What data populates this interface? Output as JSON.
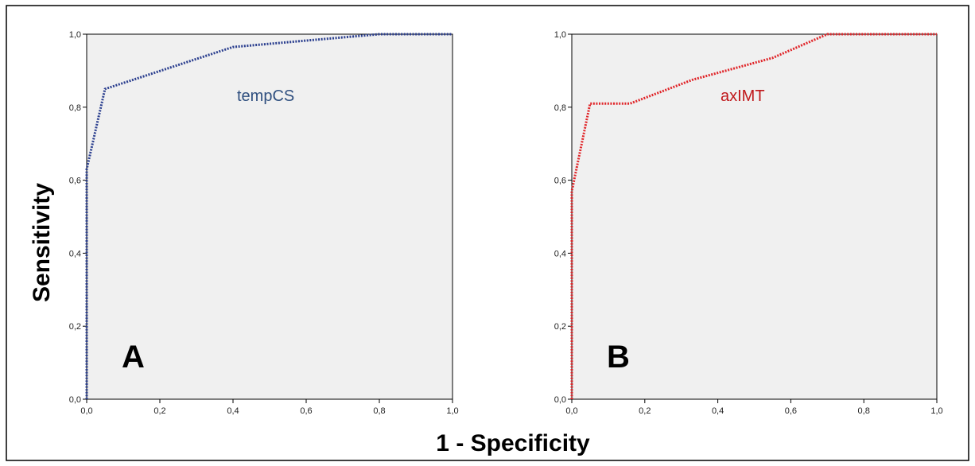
{
  "figure": {
    "ylabel": "Sensitivity",
    "xlabel": "1 - Specificity"
  },
  "chart_data": [
    {
      "type": "line",
      "panel_letter": "A",
      "curve_label": "tempCS",
      "color": "#2b3f8f",
      "label_color": "#2f4f7f",
      "xlim": [
        0,
        1
      ],
      "ylim": [
        0,
        1
      ],
      "xticks": [
        "0,0",
        "0,2",
        "0,4",
        "0,6",
        "0,8",
        "1,0"
      ],
      "yticks": [
        "0,0",
        "0,2",
        "0,4",
        "0,6",
        "0,8",
        "1,0"
      ],
      "grid": false,
      "series": [
        {
          "x": [
            0,
            0,
            0.05,
            0.4,
            0.8,
            1.0
          ],
          "y": [
            0,
            0.63,
            0.85,
            0.965,
            1.0,
            1.0
          ]
        }
      ]
    },
    {
      "type": "line",
      "panel_letter": "B",
      "curve_label": "axIMT",
      "color": "#e0262a",
      "label_color": "#c0181b",
      "xlim": [
        0,
        1
      ],
      "ylim": [
        0,
        1
      ],
      "xticks": [
        "0,0",
        "0,2",
        "0,4",
        "0,6",
        "0,8",
        "1,0"
      ],
      "yticks": [
        "0,0",
        "0,2",
        "0,4",
        "0,6",
        "0,8",
        "1,0"
      ],
      "grid": false,
      "series": [
        {
          "x": [
            0,
            0,
            0.05,
            0.16,
            0.33,
            0.55,
            0.7,
            1.0
          ],
          "y": [
            0,
            0.57,
            0.81,
            0.81,
            0.875,
            0.935,
            1.0,
            1.0
          ]
        }
      ]
    }
  ]
}
